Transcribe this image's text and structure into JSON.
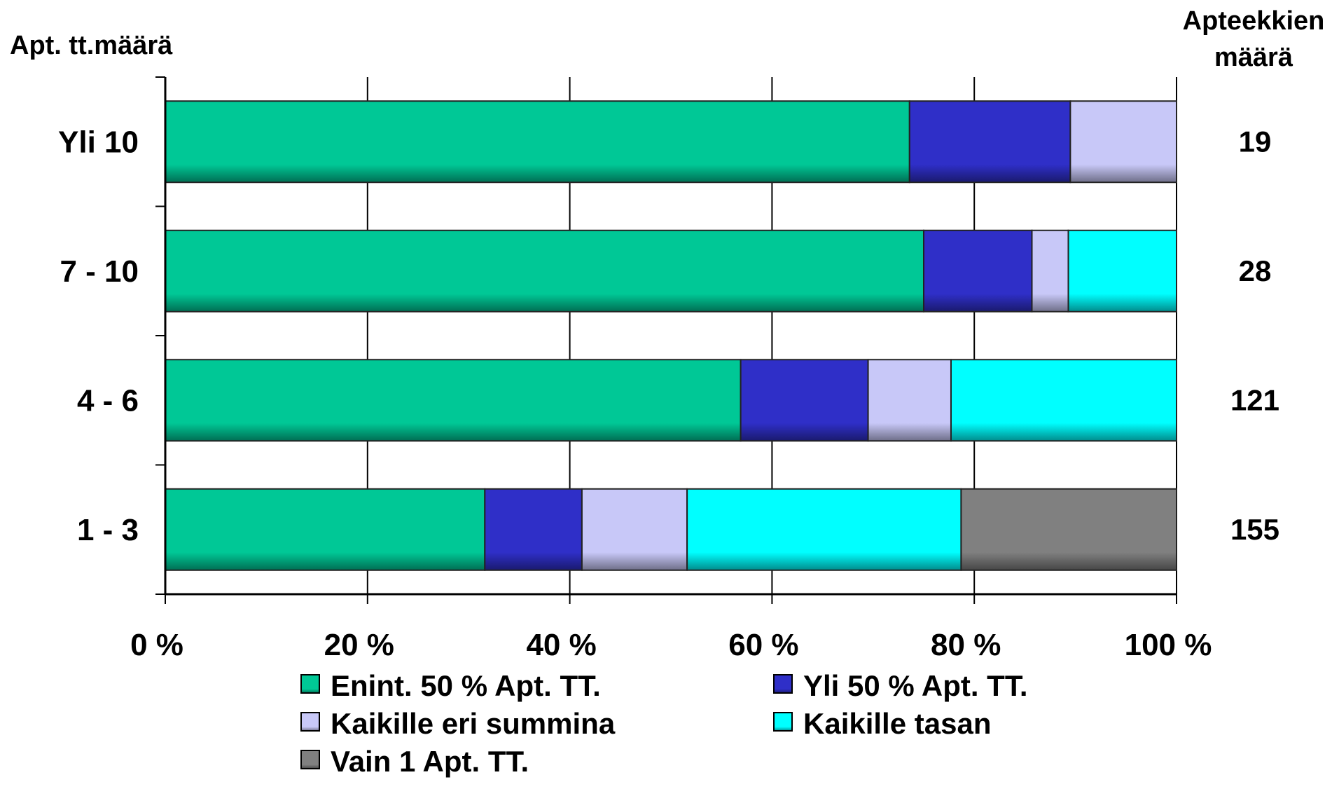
{
  "chart_data": {
    "type": "bar",
    "orientation": "horizontal",
    "stacked": "percent",
    "y_axis_title": "Apt. tt.määrä",
    "right_header": [
      "Apteekkien",
      "määrä"
    ],
    "categories": [
      "Yli 10",
      "7 - 10",
      "4 - 6",
      "1 - 3"
    ],
    "counts": [
      "19",
      "28",
      "121",
      "155"
    ],
    "x_ticks": [
      "0 %",
      "20 %",
      "40 %",
      "60 %",
      "80 %",
      "100 %"
    ],
    "xlim": [
      0,
      100
    ],
    "grid": "vertical",
    "legend_position": "bottom",
    "series": [
      {
        "name": "Enint. 50 % Apt. TT.",
        "color": "#00C896",
        "values": [
          73.6,
          75.0,
          56.9,
          31.6
        ]
      },
      {
        "name": "Yli 50 % Apt. TT.",
        "color": "#2F2FC8",
        "values": [
          15.9,
          10.7,
          12.6,
          9.6
        ]
      },
      {
        "name": "Kaikille eri summina",
        "color": "#C8C8F8",
        "values": [
          10.5,
          3.6,
          8.2,
          10.4
        ]
      },
      {
        "name": "Kaikille tasan",
        "color": "#00FFFF",
        "values": [
          0,
          10.7,
          22.3,
          27.1
        ]
      },
      {
        "name": "Vain 1 Apt. TT.",
        "color": "#808080",
        "values": [
          0,
          0,
          0,
          21.3
        ]
      }
    ]
  }
}
